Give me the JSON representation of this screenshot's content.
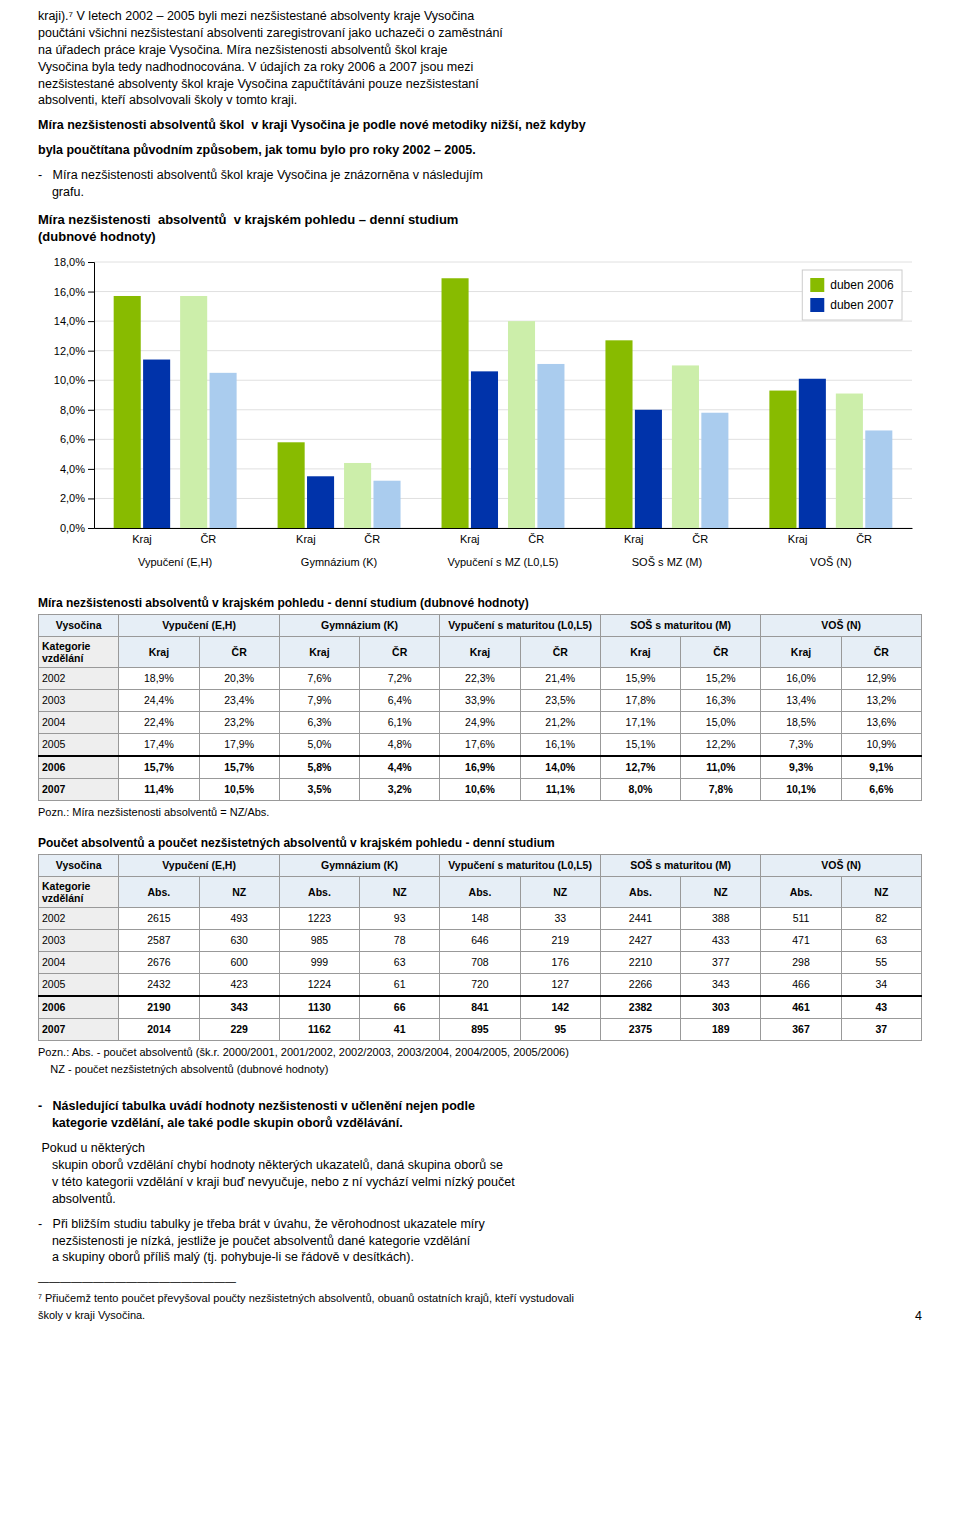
{
  "page_text": {
    "before": [
      "kraji).⁷ V letech 2002 – 2005 byli mezi nezšistestané absolventy kraje Vysočina\npoučtáni všichni nezšistestaní absolventi zaregistrovaní jako uchazeči o zaměstnání\nna úřadech práce kraje Vysočina. Míra nezšistenosti absolventů škol kraje\nVysočina byla tedy nadhodnocována. V údajích za roky 2006 a 2007 jsou mezi\nnezšistestané absolventy škol kraje Vysočina zapučtítáváni pouze nezšistestaní\nabsolventi, kteří absolvovali školy v tomto kraji.",
      "Míra nezšistenosti absolventů škol  v kraji Vysočina je podle nové metodiky nižší, než kdyby",
      "byla poučtítana původním způsobem, jak tomu bylo pro roky 2002 – 2005.",
      "-   Míra nezšistenosti absolventů škol kraje Vysočina je znázorněna v následujím\n    grafu."
    ],
    "after": [
      "-   Následující tabulka uvádí hodnoty nezšistenosti v učlenění nejen podle\n    kategorie vzdělání, ale také podle skupin oborů vzdělávání.",
      " Pokud u některých\n    skupin oborů vzdělání chybí hodnoty některých ukazatelů, daná skupina oborů se\n    v této kategorii vzdělání v kraji buď nevyučuje, nebo z ní vychází velmi nízký poučet\n    absolventů.",
      "-   Při bližším studiu tabulky je třeba brát v úvahu, že věrohodnost ukazatele míry\n    nezšistenosti je nízká, jestliže je poučet absolventů dané kategorie vzdělání\n    a skupiny oborů příliš malý (tj. pohybuje-li se řádově v desítkách).",
      "——————————————————",
      "⁷ Přiučemž tento poučet převyšoval poučty nezšistetných absolventů, obuanů ostatních krajů, kteří vystudovali",
      "školy v kraji Vysočina."
    ],
    "page_number": "4"
  },
  "chart_data": [
    {
      "type": "bar",
      "title": "Míra nezšistenosti  absolventů  v krajském pohledu – denní studium\n(dubnové hodnoty)",
      "categories": [
        "Vypučení (E,H)",
        "Gymnázium (K)",
        "Vypučení s MZ (L0,L5)",
        "SOŠ s MZ (M)",
        "VOŠ (N)"
      ],
      "subcategories": [
        "Kraj",
        "ČR"
      ],
      "series": [
        {
          "name": "duben 2006",
          "subcategory": "Kraj",
          "color": "#88bb00",
          "values": [
            15.7,
            5.8,
            16.9,
            12.7,
            9.3
          ]
        },
        {
          "name": "duben 2007",
          "subcategory": "Kraj",
          "color": "#0033aa",
          "values": [
            11.4,
            3.5,
            10.6,
            8.0,
            10.1
          ]
        },
        {
          "name": "duben 2006",
          "subcategory": "ČR",
          "color": "#cceeaa",
          "values": [
            15.7,
            4.4,
            14.0,
            11.0,
            9.1
          ]
        },
        {
          "name": "duben 2007",
          "subcategory": "ČR",
          "color": "#aaccee",
          "values": [
            10.5,
            3.2,
            11.1,
            7.8,
            6.6
          ]
        }
      ],
      "ylim": [
        0,
        18
      ],
      "yticks": [
        {
          "value": 0,
          "label": "0,0%"
        },
        {
          "value": 2,
          "label": "2,0%"
        },
        {
          "value": 4,
          "label": "4,0%"
        },
        {
          "value": 6,
          "label": "6,0%"
        },
        {
          "value": 8,
          "label": "8,0%"
        },
        {
          "value": 10,
          "label": "10,0%"
        },
        {
          "value": 12,
          "label": "12,0%"
        },
        {
          "value": 14,
          "label": "14,0%"
        },
        {
          "value": 16,
          "label": "16,0%"
        },
        {
          "value": 18,
          "label": "18,0%"
        }
      ],
      "grid": true,
      "legend": "upper right"
    },
    {
      "type": "table",
      "title": "Míra nezšistenosti absolventů v krajském pohledu - denní studium (dubnové hodnoty)",
      "header": [
        "Vysočina",
        "Vypučení (E,H)",
        "Gymnázium (K)",
        "Vypučení s maturitou (L0,L5)",
        "SOŠ s maturitou (M)",
        "VOŠ (N)"
      ],
      "subheader": [
        "Kategorie vzdělání",
        "Kraj",
        "ČR",
        "Kraj",
        "ČR",
        "Kraj",
        "ČR",
        "Kraj",
        "ČR",
        "Kraj",
        "ČR"
      ],
      "rows": [
        [
          "2002",
          "18,9%",
          "20,3%",
          "7,6%",
          "7,2%",
          "22,3%",
          "21,4%",
          "15,9%",
          "15,2%",
          "16,0%",
          "12,9%"
        ],
        [
          "2003",
          "24,4%",
          "23,4%",
          "7,9%",
          "6,4%",
          "33,9%",
          "23,5%",
          "17,8%",
          "16,3%",
          "13,4%",
          "13,2%"
        ],
        [
          "2004",
          "22,4%",
          "23,2%",
          "6,3%",
          "6,1%",
          "24,9%",
          "21,2%",
          "17,1%",
          "15,0%",
          "18,5%",
          "13,6%"
        ],
        [
          "2005",
          "17,4%",
          "17,9%",
          "5,0%",
          "4,8%",
          "17,6%",
          "16,1%",
          "15,1%",
          "12,2%",
          "7,3%",
          "10,9%"
        ],
        [
          "2006",
          "15,7%",
          "15,7%",
          "5,8%",
          "4,4%",
          "16,9%",
          "14,0%",
          "12,7%",
          "11,0%",
          "9,3%",
          "9,1%"
        ],
        [
          "2007",
          "11,4%",
          "10,5%",
          "3,5%",
          "3,2%",
          "10,6%",
          "11,1%",
          "8,0%",
          "7,8%",
          "10,1%",
          "6,6%"
        ]
      ],
      "notes": [
        "Pozn.: Míra nezšistenosti absolventů = NZ/Abs."
      ]
    },
    {
      "type": "table",
      "title": "Poučet absolventů a poučet nezšistetných absolventů v krajském pohledu - denní studium",
      "header": [
        "Vysočina",
        "Vypučení (E,H)",
        "Gymnázium (K)",
        "Vypučení s maturitou (L0,L5)",
        "SOŠ s maturitou (M)",
        "VOŠ (N)"
      ],
      "subheader": [
        "Kategorie vzdělání",
        "Abs.",
        "NZ",
        "Abs.",
        "NZ",
        "Abs.",
        "NZ",
        "Abs.",
        "NZ",
        "Abs.",
        "NZ"
      ],
      "rows": [
        [
          "2002",
          "2615",
          "493",
          "1223",
          "93",
          "148",
          "33",
          "2441",
          "388",
          "511",
          "82"
        ],
        [
          "2003",
          "2587",
          "630",
          "985",
          "78",
          "646",
          "219",
          "2427",
          "433",
          "471",
          "63"
        ],
        [
          "2004",
          "2676",
          "600",
          "999",
          "63",
          "708",
          "176",
          "2210",
          "377",
          "298",
          "55"
        ],
        [
          "2005",
          "2432",
          "423",
          "1224",
          "61",
          "720",
          "127",
          "2266",
          "343",
          "466",
          "34"
        ],
        [
          "2006",
          "2190",
          "343",
          "1130",
          "66",
          "841",
          "142",
          "2382",
          "303",
          "461",
          "43"
        ],
        [
          "2007",
          "2014",
          "229",
          "1162",
          "41",
          "895",
          "95",
          "2375",
          "189",
          "367",
          "37"
        ]
      ],
      "notes": [
        "Pozn.: Abs. - poučet absolventů (šk.r. 2000/2001, 2001/2002, 2002/2003, 2003/2004, 2004/2005, 2005/2006)",
        "    NZ - poučet nezšistetných absolventů (dubnové hodnoty)"
      ]
    }
  ]
}
